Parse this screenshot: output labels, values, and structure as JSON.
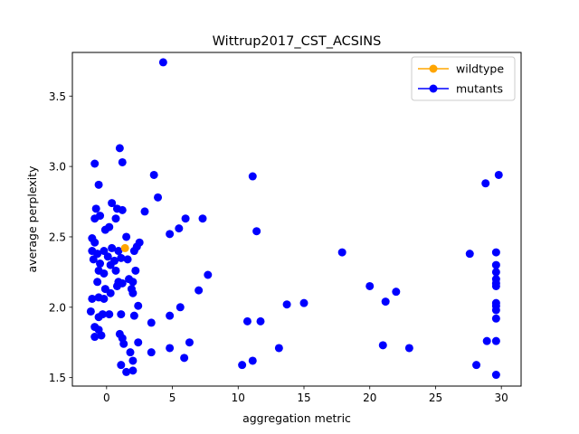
{
  "chart_data": {
    "type": "scatter",
    "title": "Wittrup2017_CST_ACSINS",
    "xlabel": "aggregation metric",
    "ylabel": "average perplexity",
    "xlim": [
      -2.6,
      31.5
    ],
    "ylim": [
      1.44,
      3.81
    ],
    "xticks": [
      0,
      5,
      10,
      15,
      20,
      25,
      30
    ],
    "yticks": [
      1.5,
      2.0,
      2.5,
      3.0,
      3.5
    ],
    "xtick_labels": [
      "0",
      "5",
      "10",
      "15",
      "20",
      "25",
      "30"
    ],
    "ytick_labels": [
      "1.5",
      "2.0",
      "2.5",
      "3.0",
      "3.5"
    ],
    "grid": false,
    "legend_position": "top-right",
    "series": [
      {
        "name": "wildtype",
        "color": "#ffa500",
        "points": [
          [
            1.4,
            2.42
          ]
        ]
      },
      {
        "name": "mutants",
        "color": "#0000ff",
        "points": [
          [
            4.3,
            3.74
          ],
          [
            1.0,
            3.13
          ],
          [
            1.2,
            3.03
          ],
          [
            -0.9,
            3.02
          ],
          [
            3.6,
            2.94
          ],
          [
            -0.6,
            2.87
          ],
          [
            11.1,
            2.93
          ],
          [
            29.8,
            2.94
          ],
          [
            28.8,
            2.88
          ],
          [
            3.9,
            2.78
          ],
          [
            0.4,
            2.74
          ],
          [
            -0.8,
            2.7
          ],
          [
            0.8,
            2.7
          ],
          [
            1.2,
            2.69
          ],
          [
            2.9,
            2.68
          ],
          [
            -0.5,
            2.65
          ],
          [
            -0.9,
            2.63
          ],
          [
            0.7,
            2.63
          ],
          [
            6.0,
            2.63
          ],
          [
            7.3,
            2.63
          ],
          [
            0.2,
            2.57
          ],
          [
            -0.1,
            2.55
          ],
          [
            5.5,
            2.56
          ],
          [
            11.4,
            2.54
          ],
          [
            4.8,
            2.52
          ],
          [
            1.5,
            2.5
          ],
          [
            -1.1,
            2.49
          ],
          [
            -0.9,
            2.46
          ],
          [
            2.5,
            2.46
          ],
          [
            2.3,
            2.43
          ],
          [
            0.4,
            2.42
          ],
          [
            0.9,
            2.4
          ],
          [
            -1.1,
            2.4
          ],
          [
            -0.7,
            2.38
          ],
          [
            -0.2,
            2.4
          ],
          [
            2.1,
            2.4
          ],
          [
            17.9,
            2.39
          ],
          [
            27.6,
            2.38
          ],
          [
            29.6,
            2.39
          ],
          [
            -1.0,
            2.34
          ],
          [
            0.1,
            2.36
          ],
          [
            0.6,
            2.33
          ],
          [
            1.1,
            2.35
          ],
          [
            1.6,
            2.34
          ],
          [
            -0.5,
            2.31
          ],
          [
            0.3,
            2.3
          ],
          [
            29.6,
            2.3
          ],
          [
            -0.6,
            2.26
          ],
          [
            -0.2,
            2.24
          ],
          [
            0.7,
            2.26
          ],
          [
            2.2,
            2.26
          ],
          [
            29.6,
            2.25
          ],
          [
            7.7,
            2.23
          ],
          [
            -0.7,
            2.18
          ],
          [
            0.9,
            2.18
          ],
          [
            1.2,
            2.17
          ],
          [
            1.7,
            2.2
          ],
          [
            2.0,
            2.18
          ],
          [
            29.6,
            2.2
          ],
          [
            29.6,
            2.17
          ],
          [
            0.8,
            2.15
          ],
          [
            1.9,
            2.13
          ],
          [
            -0.1,
            2.13
          ],
          [
            0.3,
            2.1
          ],
          [
            2.0,
            2.1
          ],
          [
            7.0,
            2.12
          ],
          [
            20.0,
            2.15
          ],
          [
            22.0,
            2.11
          ],
          [
            29.6,
            2.15
          ],
          [
            -1.1,
            2.06
          ],
          [
            -0.6,
            2.07
          ],
          [
            -0.2,
            2.06
          ],
          [
            21.2,
            2.04
          ],
          [
            13.7,
            2.02
          ],
          [
            15.0,
            2.03
          ],
          [
            2.4,
            2.01
          ],
          [
            29.6,
            2.03
          ],
          [
            29.6,
            2.01
          ],
          [
            -1.2,
            1.97
          ],
          [
            -0.3,
            1.95
          ],
          [
            0.2,
            1.95
          ],
          [
            1.1,
            1.95
          ],
          [
            2.1,
            1.94
          ],
          [
            -0.6,
            1.93
          ],
          [
            4.8,
            1.94
          ],
          [
            5.6,
            2.0
          ],
          [
            29.6,
            1.98
          ],
          [
            29.6,
            1.92
          ],
          [
            -0.9,
            1.86
          ],
          [
            3.4,
            1.89
          ],
          [
            10.7,
            1.9
          ],
          [
            11.7,
            1.9
          ],
          [
            -0.6,
            1.84
          ],
          [
            -0.4,
            1.8
          ],
          [
            -0.9,
            1.79
          ],
          [
            1.0,
            1.81
          ],
          [
            1.2,
            1.78
          ],
          [
            1.3,
            1.74
          ],
          [
            2.4,
            1.75
          ],
          [
            6.3,
            1.75
          ],
          [
            13.1,
            1.71
          ],
          [
            21.0,
            1.73
          ],
          [
            23.0,
            1.71
          ],
          [
            28.9,
            1.76
          ],
          [
            29.6,
            1.76
          ],
          [
            1.8,
            1.68
          ],
          [
            3.4,
            1.68
          ],
          [
            4.8,
            1.71
          ],
          [
            5.9,
            1.64
          ],
          [
            2.0,
            1.62
          ],
          [
            10.3,
            1.59
          ],
          [
            11.1,
            1.62
          ],
          [
            1.1,
            1.59
          ],
          [
            28.1,
            1.59
          ],
          [
            1.5,
            1.54
          ],
          [
            2.0,
            1.55
          ],
          [
            29.6,
            1.52
          ]
        ]
      }
    ]
  }
}
